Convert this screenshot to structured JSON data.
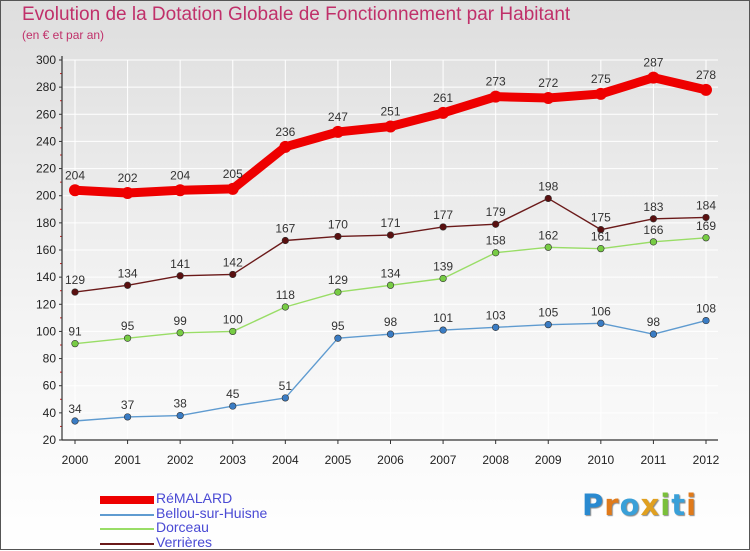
{
  "title": "Evolution de la Dotation Globale de Fonctionnement par Habitant",
  "subtitle": "(en € et par an)",
  "colors": {
    "title": "#c0306a",
    "axis": "#333333",
    "grid": "#ffffff",
    "legend_text": "#4a4ad4"
  },
  "chart_data": {
    "type": "line",
    "title": "Evolution de la Dotation Globale de Fonctionnement par Habitant",
    "xlabel": "",
    "ylabel": "(en € et par an)",
    "categories": [
      "2000",
      "2001",
      "2002",
      "2003",
      "2004",
      "2005",
      "2006",
      "2007",
      "2008",
      "2009",
      "2010",
      "2011",
      "2012"
    ],
    "ylim": [
      20,
      300
    ],
    "yticks": [
      20,
      40,
      60,
      80,
      100,
      120,
      140,
      160,
      180,
      200,
      220,
      240,
      260,
      280,
      300
    ],
    "grid": true,
    "legend_position": "bottom-left",
    "series": [
      {
        "name": "RéMALARD",
        "color": "#ee0000",
        "line_width": "heavy",
        "values": [
          204,
          202,
          204,
          205,
          236,
          247,
          251,
          261,
          273,
          272,
          275,
          287,
          278
        ]
      },
      {
        "name": "Bellou-sur-Huisne",
        "color": "#5f9bd0",
        "marker": "#3a7cc4",
        "values": [
          34,
          37,
          38,
          45,
          51,
          95,
          98,
          101,
          103,
          105,
          106,
          98,
          108
        ]
      },
      {
        "name": "Dorceau",
        "color": "#99dd66",
        "marker": "#77cc44",
        "values": [
          91,
          95,
          99,
          100,
          118,
          129,
          134,
          139,
          158,
          162,
          161,
          166,
          169
        ]
      },
      {
        "name": "Verrières",
        "color": "#6b1a1a",
        "marker": "#5a1010",
        "values": [
          129,
          134,
          141,
          142,
          167,
          170,
          171,
          177,
          179,
          198,
          175,
          183,
          184
        ]
      }
    ]
  },
  "logo": {
    "letters": [
      "P",
      "r",
      "o",
      "x",
      "i",
      "t",
      "i"
    ],
    "colors": [
      "#2a8ad0",
      "#e07a1a",
      "#3aa0d8",
      "#e0a020",
      "#7ac03a",
      "#3aa0d8",
      "#e07a1a"
    ]
  }
}
